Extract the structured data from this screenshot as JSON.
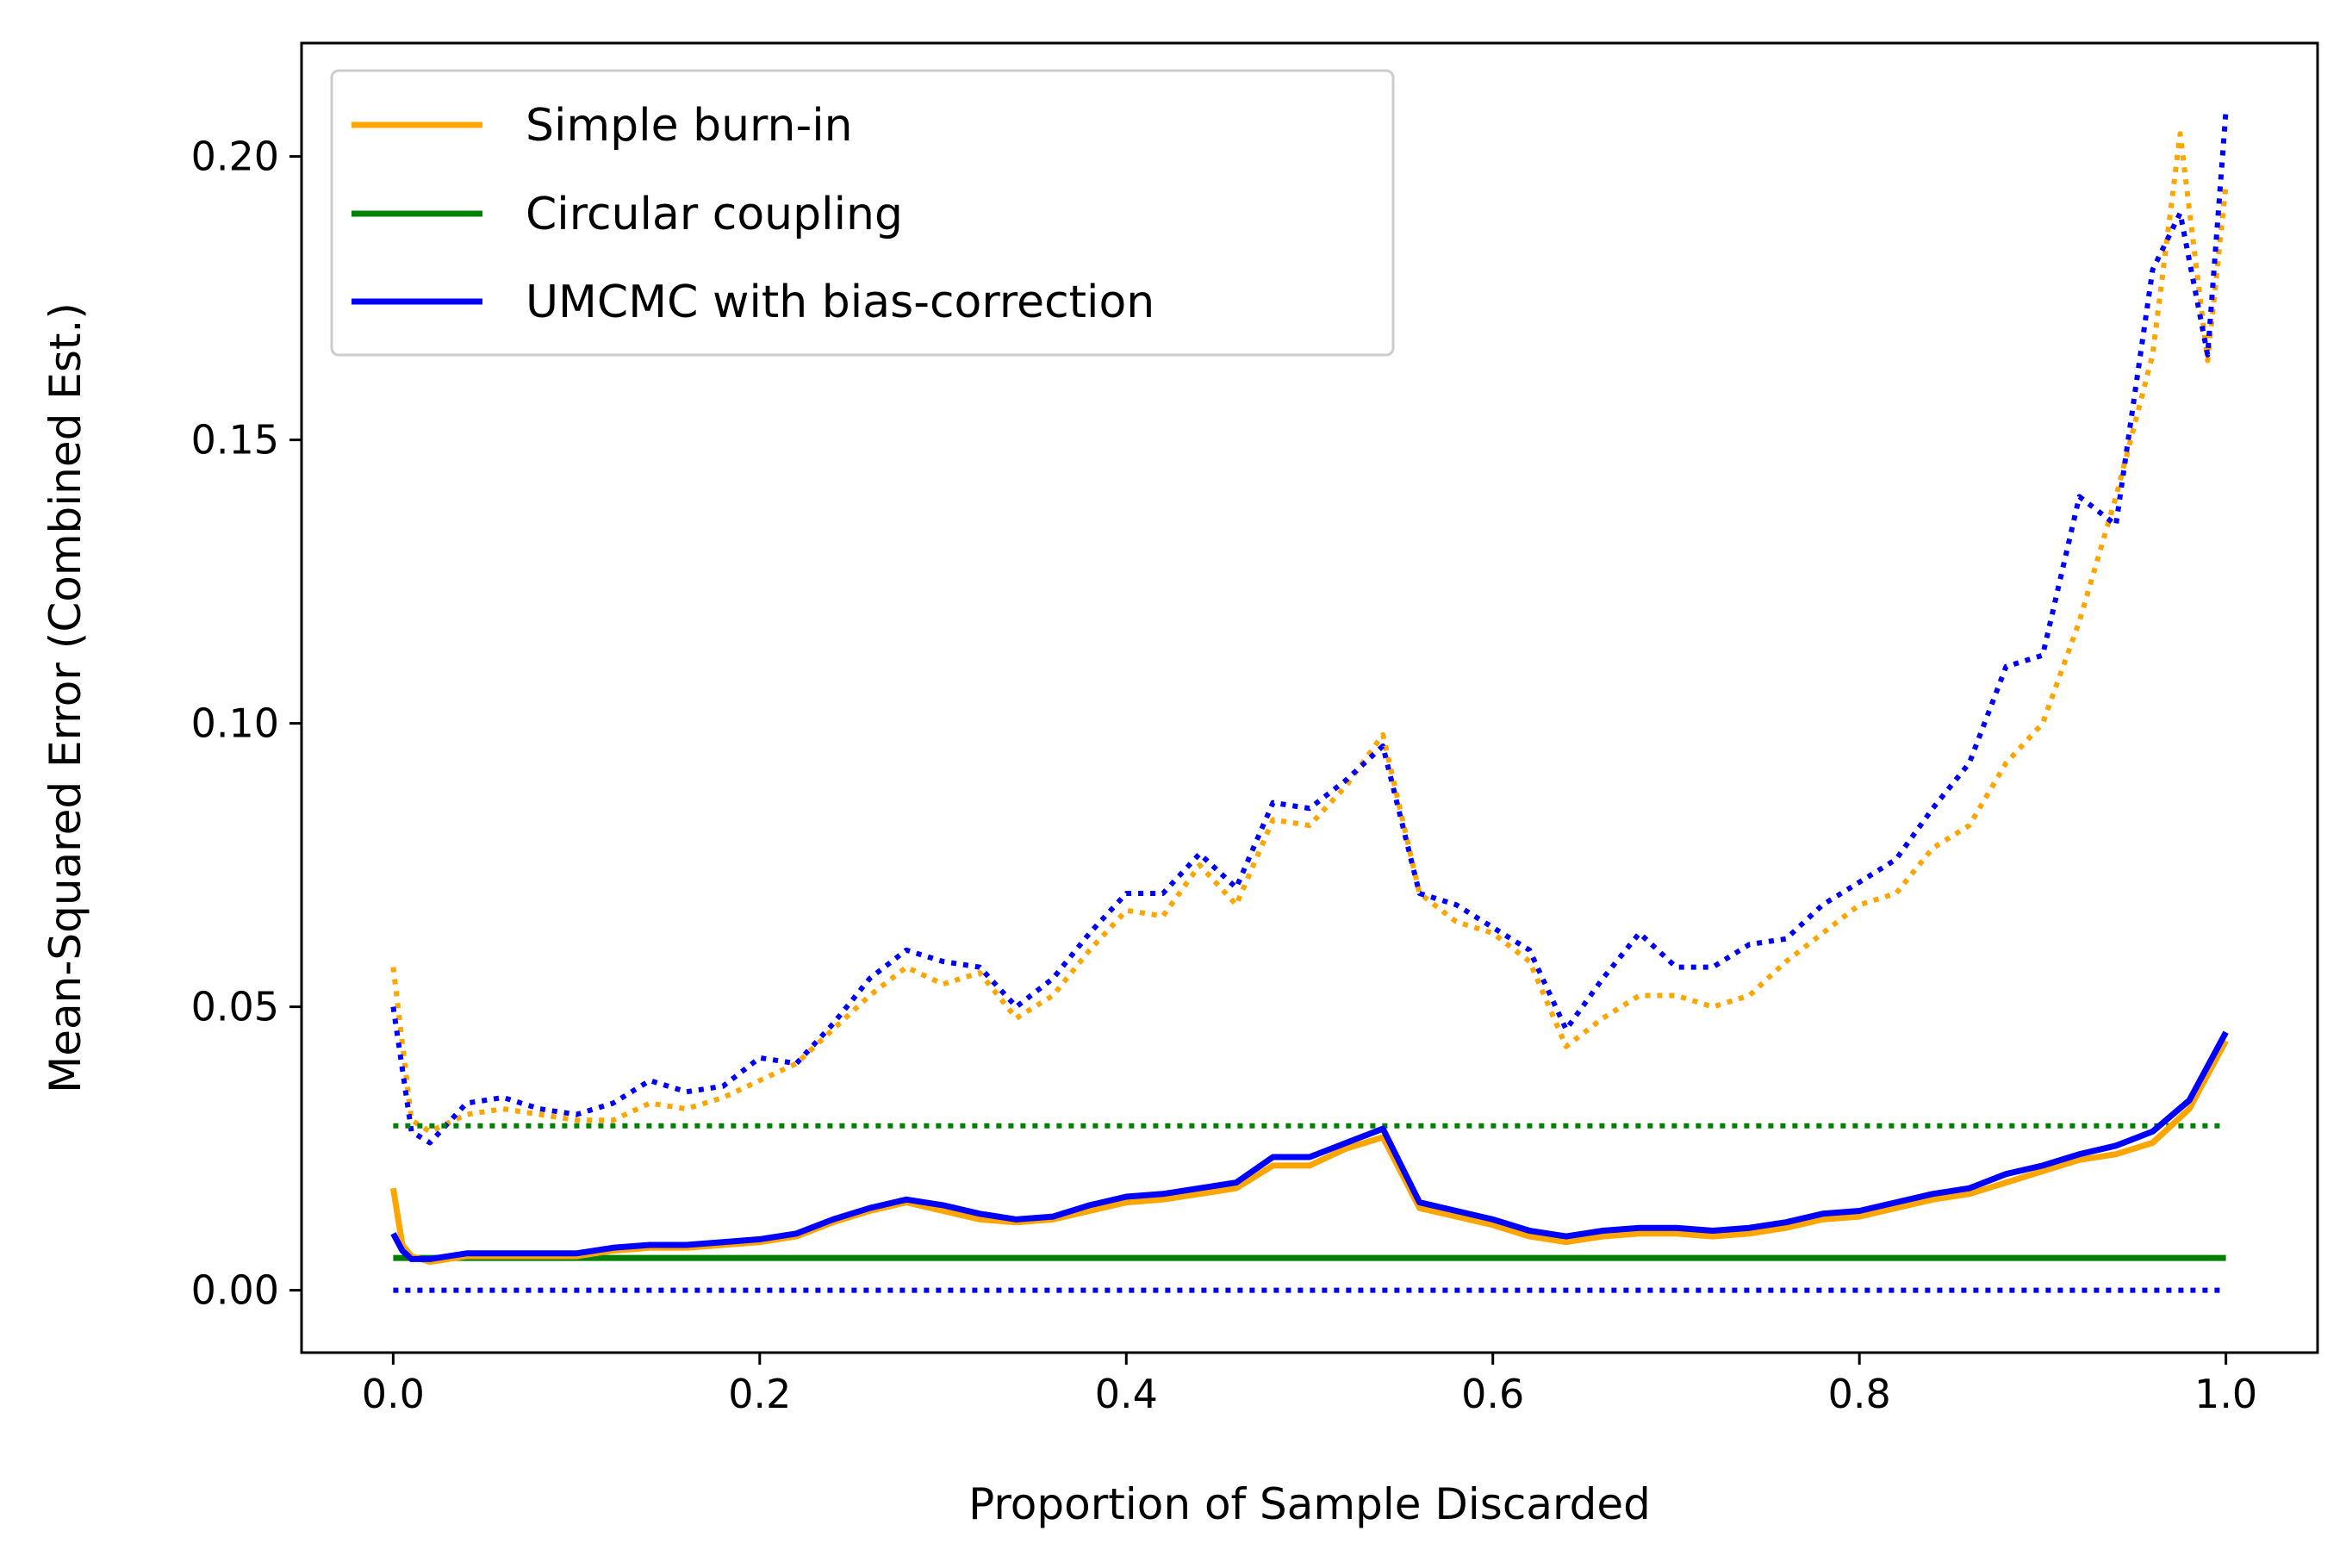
{
  "chart_data": {
    "type": "line",
    "xlabel": "Proportion of Sample Discarded",
    "ylabel": "Mean-Squared Error (Combined Est.)",
    "xlim": [
      -0.05,
      1.05
    ],
    "ylim": [
      -0.011,
      0.22
    ],
    "x_ticks": [
      0.0,
      0.2,
      0.4,
      0.6,
      0.8,
      1.0
    ],
    "x_tick_labels": [
      "0.0",
      "0.2",
      "0.4",
      "0.6",
      "0.8",
      "1.0"
    ],
    "y_ticks": [
      0.0,
      0.05,
      0.1,
      0.15,
      0.2
    ],
    "y_tick_labels": [
      "0.00",
      "0.05",
      "0.10",
      "0.15",
      "0.20"
    ],
    "grid": false,
    "legend_position": "top-left",
    "legend": [
      {
        "label": "Simple burn-in",
        "color": "#ffa500"
      },
      {
        "label": "Circular coupling",
        "color": "#008000"
      },
      {
        "label": "UMCMC with bias-correction",
        "color": "#0000ff"
      }
    ],
    "series": [
      {
        "name": "Simple burn-in",
        "color": "#ffa500",
        "style": "dotted",
        "x": [
          0.0,
          0.01,
          0.02,
          0.04,
          0.06,
          0.08,
          0.1,
          0.12,
          0.14,
          0.16,
          0.18,
          0.2,
          0.22,
          0.24,
          0.26,
          0.28,
          0.3,
          0.32,
          0.34,
          0.36,
          0.38,
          0.4,
          0.42,
          0.44,
          0.46,
          0.48,
          0.5,
          0.52,
          0.54,
          0.56,
          0.58,
          0.6,
          0.62,
          0.64,
          0.66,
          0.68,
          0.7,
          0.72,
          0.74,
          0.76,
          0.78,
          0.8,
          0.82,
          0.84,
          0.86,
          0.88,
          0.9,
          0.92,
          0.94,
          0.96,
          0.975,
          0.99,
          1.0
        ],
        "y": [
          0.057,
          0.03,
          0.028,
          0.031,
          0.032,
          0.031,
          0.03,
          0.03,
          0.033,
          0.032,
          0.034,
          0.037,
          0.04,
          0.046,
          0.052,
          0.057,
          0.054,
          0.056,
          0.048,
          0.052,
          0.06,
          0.067,
          0.066,
          0.075,
          0.068,
          0.083,
          0.082,
          0.089,
          0.098,
          0.07,
          0.065,
          0.063,
          0.058,
          0.043,
          0.048,
          0.052,
          0.052,
          0.05,
          0.052,
          0.058,
          0.063,
          0.068,
          0.07,
          0.078,
          0.082,
          0.093,
          0.1,
          0.118,
          0.14,
          0.165,
          0.204,
          0.164,
          0.195
        ]
      },
      {
        "name": "UMCMC with bias-correction",
        "color": "#0000ff",
        "style": "dotted",
        "x": [
          0.0,
          0.01,
          0.02,
          0.04,
          0.06,
          0.08,
          0.1,
          0.12,
          0.14,
          0.16,
          0.18,
          0.2,
          0.22,
          0.24,
          0.26,
          0.28,
          0.3,
          0.32,
          0.34,
          0.36,
          0.38,
          0.4,
          0.42,
          0.44,
          0.46,
          0.48,
          0.5,
          0.52,
          0.54,
          0.56,
          0.58,
          0.6,
          0.62,
          0.64,
          0.66,
          0.68,
          0.7,
          0.72,
          0.74,
          0.76,
          0.78,
          0.8,
          0.82,
          0.84,
          0.86,
          0.88,
          0.9,
          0.92,
          0.94,
          0.96,
          0.975,
          0.99,
          1.0
        ],
        "y": [
          0.05,
          0.028,
          0.026,
          0.033,
          0.034,
          0.032,
          0.031,
          0.033,
          0.037,
          0.035,
          0.036,
          0.041,
          0.04,
          0.047,
          0.055,
          0.06,
          0.058,
          0.057,
          0.05,
          0.055,
          0.063,
          0.07,
          0.07,
          0.077,
          0.071,
          0.086,
          0.085,
          0.09,
          0.096,
          0.07,
          0.068,
          0.064,
          0.06,
          0.046,
          0.055,
          0.063,
          0.057,
          0.057,
          0.061,
          0.062,
          0.068,
          0.072,
          0.076,
          0.085,
          0.093,
          0.11,
          0.112,
          0.14,
          0.135,
          0.18,
          0.19,
          0.165,
          0.208
        ]
      },
      {
        "name": "Circular coupling",
        "color": "#008000",
        "style": "dotted",
        "x": [
          0.0,
          1.0
        ],
        "y": [
          0.029,
          0.029
        ]
      },
      {
        "name": "UMCMC with bias-correction",
        "color": "#0000ff",
        "style": "dotted",
        "x": [
          0.0,
          1.0
        ],
        "y": [
          0.0,
          0.0
        ]
      },
      {
        "name": "Circular coupling",
        "color": "#008000",
        "style": "solid",
        "x": [
          0.0,
          1.0
        ],
        "y": [
          0.0057,
          0.0057
        ]
      },
      {
        "name": "Simple burn-in",
        "color": "#ffa500",
        "style": "solid",
        "x": [
          0.0,
          0.005,
          0.01,
          0.02,
          0.04,
          0.06,
          0.08,
          0.1,
          0.12,
          0.14,
          0.16,
          0.18,
          0.2,
          0.22,
          0.24,
          0.26,
          0.28,
          0.3,
          0.32,
          0.34,
          0.36,
          0.38,
          0.4,
          0.42,
          0.44,
          0.46,
          0.48,
          0.5,
          0.52,
          0.54,
          0.56,
          0.58,
          0.6,
          0.62,
          0.64,
          0.66,
          0.68,
          0.7,
          0.72,
          0.74,
          0.76,
          0.78,
          0.8,
          0.82,
          0.84,
          0.86,
          0.88,
          0.9,
          0.92,
          0.94,
          0.96,
          0.98,
          1.0
        ],
        "y": [
          0.018,
          0.008,
          0.006,
          0.005,
          0.006,
          0.006,
          0.006,
          0.006,
          0.007,
          0.0075,
          0.0075,
          0.008,
          0.0085,
          0.0095,
          0.012,
          0.014,
          0.0155,
          0.014,
          0.0125,
          0.012,
          0.0125,
          0.014,
          0.0155,
          0.016,
          0.017,
          0.018,
          0.022,
          0.022,
          0.025,
          0.027,
          0.0145,
          0.013,
          0.0115,
          0.0095,
          0.0085,
          0.0095,
          0.01,
          0.01,
          0.0095,
          0.01,
          0.011,
          0.0125,
          0.013,
          0.0145,
          0.016,
          0.017,
          0.019,
          0.021,
          0.023,
          0.024,
          0.026,
          0.032,
          0.044
        ]
      },
      {
        "name": "UMCMC with bias-correction",
        "color": "#0000ff",
        "style": "solid",
        "x": [
          0.0,
          0.005,
          0.01,
          0.02,
          0.04,
          0.06,
          0.08,
          0.1,
          0.12,
          0.14,
          0.16,
          0.18,
          0.2,
          0.22,
          0.24,
          0.26,
          0.28,
          0.3,
          0.32,
          0.34,
          0.36,
          0.38,
          0.4,
          0.42,
          0.44,
          0.46,
          0.48,
          0.5,
          0.52,
          0.54,
          0.56,
          0.58,
          0.6,
          0.62,
          0.64,
          0.66,
          0.68,
          0.7,
          0.72,
          0.74,
          0.76,
          0.78,
          0.8,
          0.82,
          0.84,
          0.86,
          0.88,
          0.9,
          0.92,
          0.94,
          0.96,
          0.98,
          1.0
        ],
        "y": [
          0.01,
          0.007,
          0.0055,
          0.0055,
          0.0065,
          0.0065,
          0.0065,
          0.0065,
          0.0075,
          0.008,
          0.008,
          0.0085,
          0.009,
          0.01,
          0.0125,
          0.0145,
          0.016,
          0.015,
          0.0135,
          0.0125,
          0.013,
          0.015,
          0.0165,
          0.017,
          0.018,
          0.019,
          0.0235,
          0.0235,
          0.026,
          0.0285,
          0.0155,
          0.014,
          0.0125,
          0.0105,
          0.0095,
          0.0105,
          0.011,
          0.011,
          0.0105,
          0.011,
          0.012,
          0.0135,
          0.014,
          0.0155,
          0.017,
          0.018,
          0.0205,
          0.022,
          0.024,
          0.0255,
          0.028,
          0.0335,
          0.0455
        ]
      }
    ]
  }
}
